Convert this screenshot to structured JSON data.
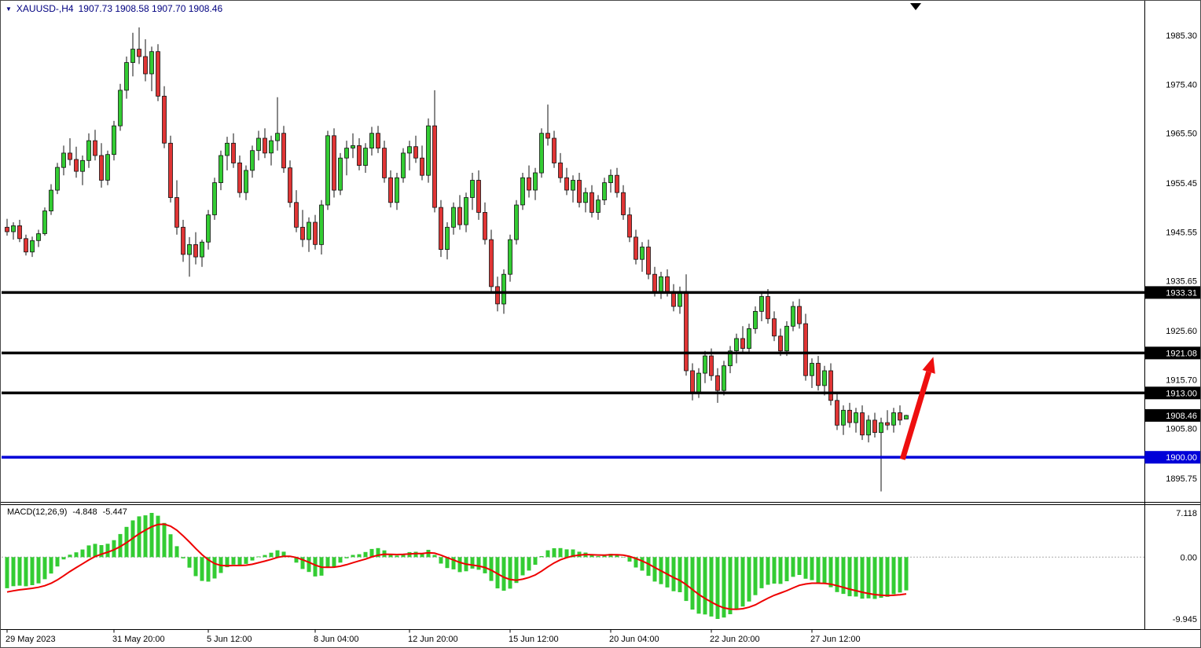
{
  "header": {
    "symbol_period": "XAUUSD-,H4",
    "ohlc_text": "1907.73 1908.58 1907.70 1908.46"
  },
  "macd_panel": {
    "name": "MACD(12,26,9)",
    "value_main": "-4.848",
    "value_signal": "-5.447"
  },
  "colors": {
    "up": "#33CC33",
    "down": "#E03535",
    "outline": "#111111",
    "macd_hist": "#33CC33",
    "macd_signal": "#EE0000",
    "arrow": "#EE0F0F",
    "title_text": "#000080",
    "axis_text": "#000000"
  },
  "chart_data": {
    "type": "candlestick",
    "symbol": "XAUUSD-",
    "timeframe": "H4",
    "price_axis": {
      "ticks": [
        1985.3,
        1975.4,
        1965.5,
        1955.45,
        1945.55,
        1935.65,
        1925.6,
        1915.7,
        1905.8,
        1895.75
      ]
    },
    "time_axis": {
      "labels": [
        {
          "text": "29 May 2023",
          "index": 0
        },
        {
          "text": "31 May 20:00",
          "index": 17
        },
        {
          "text": "5 Jun 12:00",
          "index": 32
        },
        {
          "text": "8 Jun 04:00",
          "index": 49
        },
        {
          "text": "12 Jun 20:00",
          "index": 64
        },
        {
          "text": "15 Jun 12:00",
          "index": 80
        },
        {
          "text": "20 Jun 04:00",
          "index": 96
        },
        {
          "text": "22 Jun 20:00",
          "index": 112
        },
        {
          "text": "27 Jun 12:00",
          "index": 128
        }
      ]
    },
    "hlines": [
      {
        "price": 1933.31,
        "label": "1933.31",
        "color": "#000000"
      },
      {
        "price": 1921.08,
        "label": "1921.08",
        "color": "#000000"
      },
      {
        "price": 1913.0,
        "label": "1913.00",
        "color": "#000000"
      },
      {
        "price": 1900.0,
        "label": "1900.00",
        "color": "#0000D8"
      }
    ],
    "current_price_tag": {
      "price": 1908.46,
      "label": "1908.46",
      "bg": "#000000"
    },
    "arrow": {
      "from_index": 142.4,
      "from_price": 1899.6,
      "to_index": 147.3,
      "to_price": 1920.3
    },
    "chart_shift_index": 144.5,
    "macd": {
      "params": "12,26,9",
      "axis_ticks": [
        {
          "label": "7.118",
          "value": 7.118
        },
        {
          "label": "0.00",
          "value": 0
        },
        {
          "label": "-9.945",
          "value": -9.945
        }
      ],
      "current_main": -4.848,
      "current_signal": -5.447
    },
    "candles": [
      [
        1946.5,
        1948.2,
        1944.8,
        1945.6
      ],
      [
        1945.6,
        1947.5,
        1944.0,
        1946.8
      ],
      [
        1946.8,
        1948.0,
        1943.5,
        1944.2
      ],
      [
        1944.2,
        1945.0,
        1940.8,
        1941.5
      ],
      [
        1941.5,
        1944.6,
        1940.5,
        1943.8
      ],
      [
        1943.8,
        1946.0,
        1942.5,
        1945.2
      ],
      [
        1945.2,
        1950.5,
        1944.8,
        1949.8
      ],
      [
        1949.8,
        1955.2,
        1949.0,
        1954.0
      ],
      [
        1954.0,
        1959.5,
        1953.2,
        1958.6
      ],
      [
        1958.6,
        1963.0,
        1957.0,
        1961.5
      ],
      [
        1961.5,
        1964.5,
        1959.0,
        1960.2
      ],
      [
        1960.2,
        1962.8,
        1956.5,
        1957.8
      ],
      [
        1957.8,
        1961.0,
        1955.0,
        1960.0
      ],
      [
        1960.0,
        1965.5,
        1958.5,
        1964.0
      ],
      [
        1964.0,
        1966.2,
        1960.0,
        1961.0
      ],
      [
        1961.0,
        1963.5,
        1954.5,
        1956.0
      ],
      [
        1956.0,
        1962.0,
        1955.0,
        1961.2
      ],
      [
        1961.2,
        1968.0,
        1960.0,
        1967.0
      ],
      [
        1967.0,
        1975.5,
        1966.0,
        1974.2
      ],
      [
        1974.2,
        1981.0,
        1972.5,
        1979.8
      ],
      [
        1979.8,
        1985.8,
        1977.0,
        1982.5
      ],
      [
        1982.5,
        1986.9,
        1979.5,
        1981.0
      ],
      [
        1981.0,
        1984.5,
        1976.0,
        1977.5
      ],
      [
        1977.5,
        1983.0,
        1974.0,
        1982.0
      ],
      [
        1982.0,
        1983.5,
        1972.0,
        1973.0
      ],
      [
        1973.0,
        1975.0,
        1962.5,
        1963.5
      ],
      [
        1963.5,
        1965.0,
        1951.5,
        1952.5
      ],
      [
        1952.5,
        1956.0,
        1945.0,
        1946.5
      ],
      [
        1946.5,
        1948.0,
        1939.5,
        1941.0
      ],
      [
        1941.0,
        1944.5,
        1936.5,
        1943.0
      ],
      [
        1943.0,
        1945.5,
        1939.0,
        1940.5
      ],
      [
        1940.5,
        1944.0,
        1938.5,
        1943.5
      ],
      [
        1943.5,
        1950.0,
        1942.0,
        1949.0
      ],
      [
        1949.0,
        1956.5,
        1948.0,
        1955.5
      ],
      [
        1955.5,
        1962.0,
        1954.0,
        1961.0
      ],
      [
        1961.0,
        1964.8,
        1958.0,
        1963.5
      ],
      [
        1963.5,
        1965.5,
        1958.5,
        1959.5
      ],
      [
        1959.5,
        1961.0,
        1952.5,
        1953.5
      ],
      [
        1953.5,
        1959.0,
        1952.0,
        1958.0
      ],
      [
        1958.0,
        1963.0,
        1956.5,
        1962.0
      ],
      [
        1962.0,
        1966.0,
        1960.0,
        1964.5
      ],
      [
        1964.5,
        1966.5,
        1960.5,
        1961.5
      ],
      [
        1961.5,
        1965.0,
        1959.0,
        1964.0
      ],
      [
        1964.0,
        1972.8,
        1962.0,
        1965.5
      ],
      [
        1965.5,
        1967.0,
        1957.5,
        1958.5
      ],
      [
        1958.5,
        1960.0,
        1950.5,
        1951.5
      ],
      [
        1951.5,
        1954.0,
        1945.5,
        1946.5
      ],
      [
        1946.5,
        1950.0,
        1942.5,
        1944.0
      ],
      [
        1944.0,
        1948.5,
        1941.5,
        1947.5
      ],
      [
        1947.5,
        1949.0,
        1942.0,
        1943.0
      ],
      [
        1943.0,
        1952.0,
        1941.0,
        1951.0
      ],
      [
        1951.0,
        1966.0,
        1950.0,
        1965.0
      ],
      [
        1965.0,
        1966.5,
        1952.5,
        1954.0
      ],
      [
        1954.0,
        1961.5,
        1953.0,
        1960.5
      ],
      [
        1960.5,
        1964.0,
        1957.0,
        1962.5
      ],
      [
        1962.5,
        1965.5,
        1960.5,
        1963.0
      ],
      [
        1963.0,
        1964.5,
        1958.0,
        1959.0
      ],
      [
        1959.0,
        1963.5,
        1957.5,
        1962.5
      ],
      [
        1962.5,
        1966.8,
        1961.0,
        1965.5
      ],
      [
        1965.5,
        1967.0,
        1961.5,
        1962.5
      ],
      [
        1962.5,
        1964.0,
        1955.5,
        1956.5
      ],
      [
        1956.5,
        1958.0,
        1950.5,
        1951.5
      ],
      [
        1951.5,
        1957.5,
        1950.0,
        1956.5
      ],
      [
        1956.5,
        1962.5,
        1955.5,
        1961.5
      ],
      [
        1961.5,
        1964.0,
        1958.0,
        1962.8
      ],
      [
        1962.8,
        1965.0,
        1959.5,
        1960.5
      ],
      [
        1960.5,
        1963.0,
        1956.0,
        1957.0
      ],
      [
        1957.0,
        1968.5,
        1955.5,
        1967.0
      ],
      [
        1967.0,
        1974.2,
        1949.5,
        1950.5
      ],
      [
        1950.5,
        1952.0,
        1940.5,
        1942.0
      ],
      [
        1942.0,
        1947.5,
        1940.0,
        1946.5
      ],
      [
        1946.5,
        1951.5,
        1945.0,
        1950.5
      ],
      [
        1950.5,
        1953.0,
        1946.0,
        1947.0
      ],
      [
        1947.0,
        1953.5,
        1945.5,
        1952.5
      ],
      [
        1952.5,
        1957.5,
        1950.0,
        1956.0
      ],
      [
        1956.0,
        1958.0,
        1948.0,
        1949.5
      ],
      [
        1949.5,
        1951.5,
        1943.0,
        1944.0
      ],
      [
        1944.0,
        1946.0,
        1933.5,
        1934.5
      ],
      [
        1934.5,
        1936.5,
        1929.5,
        1931.0
      ],
      [
        1931.0,
        1938.0,
        1929.0,
        1937.0
      ],
      [
        1937.0,
        1945.0,
        1935.5,
        1944.0
      ],
      [
        1944.0,
        1952.0,
        1943.0,
        1951.0
      ],
      [
        1951.0,
        1957.5,
        1950.0,
        1956.5
      ],
      [
        1956.5,
        1959.0,
        1952.5,
        1954.0
      ],
      [
        1954.0,
        1958.5,
        1952.0,
        1957.5
      ],
      [
        1957.5,
        1966.5,
        1956.5,
        1965.5
      ],
      [
        1965.5,
        1971.3,
        1963.0,
        1964.5
      ],
      [
        1964.5,
        1966.0,
        1958.5,
        1959.5
      ],
      [
        1959.5,
        1961.5,
        1955.5,
        1956.5
      ],
      [
        1956.5,
        1958.5,
        1953.0,
        1954.0
      ],
      [
        1954.0,
        1957.0,
        1951.5,
        1956.0
      ],
      [
        1956.0,
        1957.5,
        1950.5,
        1951.5
      ],
      [
        1951.5,
        1954.5,
        1949.5,
        1953.5
      ],
      [
        1953.5,
        1955.0,
        1948.5,
        1949.5
      ],
      [
        1949.5,
        1953.0,
        1948.0,
        1952.0
      ],
      [
        1952.0,
        1956.5,
        1951.0,
        1955.5
      ],
      [
        1955.5,
        1958.2,
        1953.5,
        1957.0
      ],
      [
        1957.0,
        1958.5,
        1952.5,
        1953.5
      ],
      [
        1953.5,
        1955.0,
        1948.0,
        1949.0
      ],
      [
        1949.0,
        1950.5,
        1943.5,
        1944.5
      ],
      [
        1944.5,
        1946.0,
        1939.0,
        1940.0
      ],
      [
        1940.0,
        1943.5,
        1937.5,
        1942.5
      ],
      [
        1942.5,
        1944.0,
        1936.0,
        1937.0
      ],
      [
        1937.0,
        1938.5,
        1932.5,
        1933.5
      ],
      [
        1933.5,
        1937.5,
        1932.0,
        1936.5
      ],
      [
        1936.5,
        1938.0,
        1932.5,
        1933.5
      ],
      [
        1933.5,
        1935.0,
        1929.5,
        1930.5
      ],
      [
        1930.5,
        1934.5,
        1929.0,
        1933.5
      ],
      [
        1933.5,
        1937.0,
        1916.5,
        1917.5
      ],
      [
        1917.5,
        1919.0,
        1911.5,
        1913.0
      ],
      [
        1913.0,
        1918.0,
        1912.0,
        1917.0
      ],
      [
        1917.0,
        1921.5,
        1915.0,
        1920.5
      ],
      [
        1920.5,
        1922.0,
        1915.5,
        1916.5
      ],
      [
        1916.5,
        1918.0,
        1911.0,
        1913.5
      ],
      [
        1913.5,
        1919.5,
        1912.5,
        1918.5
      ],
      [
        1918.5,
        1922.5,
        1917.0,
        1921.5
      ],
      [
        1921.5,
        1925.0,
        1919.0,
        1924.0
      ],
      [
        1924.0,
        1926.5,
        1921.0,
        1922.0
      ],
      [
        1922.0,
        1927.0,
        1921.0,
        1926.0
      ],
      [
        1926.0,
        1930.5,
        1925.0,
        1929.5
      ],
      [
        1929.5,
        1933.5,
        1927.5,
        1932.5
      ],
      [
        1932.5,
        1934.0,
        1927.0,
        1928.0
      ],
      [
        1928.0,
        1929.5,
        1923.5,
        1924.5
      ],
      [
        1924.5,
        1926.0,
        1920.5,
        1921.5
      ],
      [
        1921.5,
        1927.5,
        1920.5,
        1926.5
      ],
      [
        1926.5,
        1931.5,
        1925.5,
        1930.5
      ],
      [
        1930.5,
        1932.0,
        1926.0,
        1927.0
      ],
      [
        1927.0,
        1929.0,
        1915.5,
        1916.5
      ],
      [
        1916.5,
        1920.0,
        1914.0,
        1919.0
      ],
      [
        1919.0,
        1920.5,
        1913.5,
        1914.5
      ],
      [
        1914.5,
        1918.5,
        1912.5,
        1917.5
      ],
      [
        1917.5,
        1919.0,
        1910.5,
        1911.5
      ],
      [
        1911.5,
        1913.0,
        1905.5,
        1906.5
      ],
      [
        1906.5,
        1910.5,
        1904.5,
        1909.5
      ],
      [
        1909.5,
        1911.0,
        1906.0,
        1907.0
      ],
      [
        1907.0,
        1910.0,
        1905.0,
        1909.0
      ],
      [
        1909.0,
        1910.5,
        1903.5,
        1904.5
      ],
      [
        1904.5,
        1908.5,
        1903.0,
        1907.5
      ],
      [
        1907.5,
        1909.0,
        1904.0,
        1905.0
      ],
      [
        1905.0,
        1908.0,
        1893.1,
        1907.0
      ],
      [
        1907.0,
        1909.5,
        1905.5,
        1906.5
      ],
      [
        1906.5,
        1910.0,
        1905.0,
        1909.0
      ],
      [
        1909.0,
        1910.5,
        1906.5,
        1907.5
      ],
      [
        1907.73,
        1908.58,
        1907.7,
        1908.46
      ]
    ]
  }
}
